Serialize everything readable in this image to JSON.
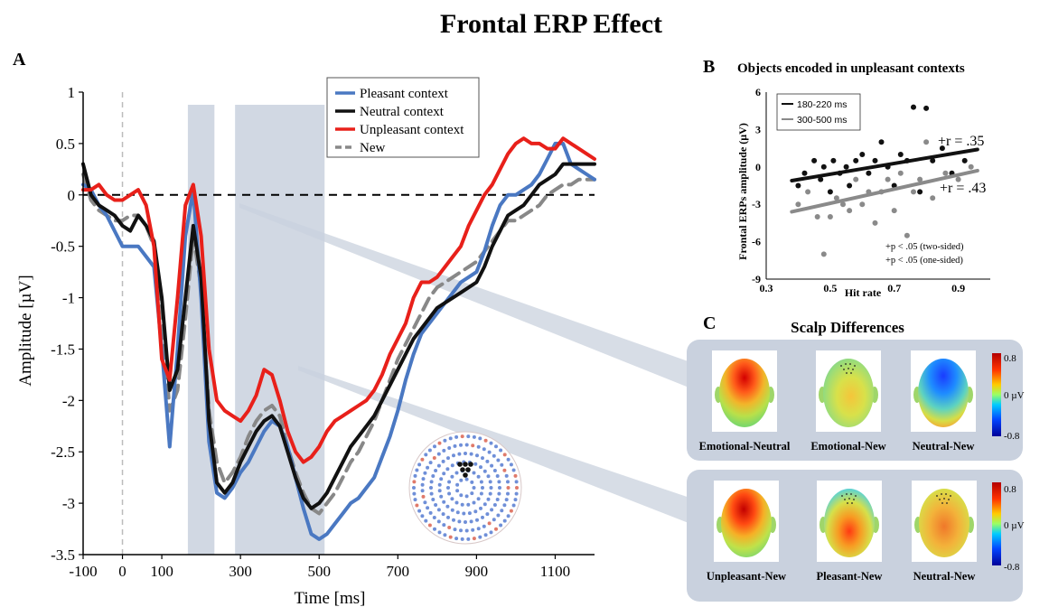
{
  "figure": {
    "title": "Frontal ERP Effect",
    "panel_a_label": "A",
    "panel_b_label": "B",
    "panel_c_label": "C"
  },
  "chart_data": [
    {
      "id": "panel-a",
      "type": "line",
      "xlabel": "Time [ms]",
      "ylabel": "Amplitude [µV]",
      "xlim": [
        -100,
        1200
      ],
      "ylim": [
        -3.5,
        1
      ],
      "xticks": [
        -100,
        0,
        100,
        300,
        500,
        700,
        900,
        1100
      ],
      "yticks": [
        1,
        0.5,
        0,
        -0.5,
        -1,
        -1.5,
        -2,
        -2.5,
        -3,
        -3.5
      ],
      "shaded_windows_ms": [
        [
          180,
          220
        ],
        [
          300,
          500
        ]
      ],
      "zero_line": true,
      "stimulus_onset_ms": 0,
      "legend_position": "top-center",
      "series": [
        {
          "name": "Pleasant context",
          "color": "#4a78c2",
          "dash": false,
          "x": [
            -100,
            -80,
            -60,
            -40,
            -20,
            0,
            20,
            40,
            60,
            80,
            100,
            120,
            140,
            160,
            180,
            200,
            220,
            240,
            260,
            280,
            300,
            320,
            340,
            360,
            380,
            400,
            420,
            440,
            460,
            480,
            500,
            520,
            540,
            560,
            580,
            600,
            620,
            640,
            660,
            680,
            700,
            720,
            740,
            760,
            780,
            800,
            820,
            840,
            860,
            880,
            900,
            920,
            940,
            960,
            980,
            1000,
            1020,
            1040,
            1060,
            1080,
            1100,
            1120,
            1140,
            1160,
            1180,
            1200
          ],
          "y": [
            0.1,
            0.05,
            -0.1,
            -0.2,
            -0.35,
            -0.5,
            -0.5,
            -0.5,
            -0.6,
            -0.7,
            -1.5,
            -2.45,
            -1.5,
            -0.4,
            0.05,
            -1.0,
            -2.4,
            -2.9,
            -2.95,
            -2.85,
            -2.7,
            -2.6,
            -2.45,
            -2.3,
            -2.2,
            -2.25,
            -2.45,
            -2.75,
            -3.05,
            -3.3,
            -3.35,
            -3.3,
            -3.2,
            -3.1,
            -3.0,
            -2.95,
            -2.85,
            -2.75,
            -2.55,
            -2.35,
            -2.1,
            -1.8,
            -1.55,
            -1.35,
            -1.25,
            -1.15,
            -1.05,
            -0.95,
            -0.85,
            -0.8,
            -0.75,
            -0.55,
            -0.3,
            -0.1,
            0.0,
            0.0,
            0.05,
            0.1,
            0.2,
            0.35,
            0.5,
            0.5,
            0.3,
            0.25,
            0.2,
            0.15
          ]
        },
        {
          "name": "Neutral context",
          "color": "#111111",
          "dash": false,
          "x": [
            -100,
            -80,
            -60,
            -40,
            -20,
            0,
            20,
            40,
            60,
            80,
            100,
            120,
            140,
            160,
            180,
            200,
            220,
            240,
            260,
            280,
            300,
            320,
            340,
            360,
            380,
            400,
            420,
            440,
            460,
            480,
            500,
            520,
            540,
            560,
            580,
            600,
            620,
            640,
            660,
            680,
            700,
            720,
            740,
            760,
            780,
            800,
            820,
            840,
            860,
            880,
            900,
            920,
            940,
            960,
            980,
            1000,
            1020,
            1040,
            1060,
            1080,
            1100,
            1120,
            1140,
            1160,
            1180,
            1200
          ],
          "y": [
            0.3,
            0.0,
            -0.1,
            -0.15,
            -0.2,
            -0.3,
            -0.35,
            -0.2,
            -0.3,
            -0.45,
            -1.0,
            -1.9,
            -1.7,
            -1.0,
            -0.3,
            -0.8,
            -2.2,
            -2.8,
            -2.9,
            -2.8,
            -2.6,
            -2.45,
            -2.3,
            -2.2,
            -2.15,
            -2.25,
            -2.5,
            -2.75,
            -2.95,
            -3.05,
            -3.0,
            -2.9,
            -2.75,
            -2.6,
            -2.45,
            -2.35,
            -2.25,
            -2.15,
            -2.0,
            -1.85,
            -1.7,
            -1.55,
            -1.4,
            -1.3,
            -1.2,
            -1.1,
            -1.05,
            -1.0,
            -0.95,
            -0.9,
            -0.85,
            -0.7,
            -0.5,
            -0.35,
            -0.2,
            -0.15,
            -0.1,
            0.0,
            0.1,
            0.15,
            0.2,
            0.3,
            0.3,
            0.3,
            0.3,
            0.3
          ]
        },
        {
          "name": "Unpleasant context",
          "color": "#e8201a",
          "dash": false,
          "x": [
            -100,
            -80,
            -60,
            -40,
            -20,
            0,
            20,
            40,
            60,
            80,
            100,
            120,
            140,
            160,
            180,
            200,
            220,
            240,
            260,
            280,
            300,
            320,
            340,
            360,
            380,
            400,
            420,
            440,
            460,
            480,
            500,
            520,
            540,
            560,
            580,
            600,
            620,
            640,
            660,
            680,
            700,
            720,
            740,
            760,
            780,
            800,
            820,
            840,
            860,
            880,
            900,
            920,
            940,
            960,
            980,
            1000,
            1020,
            1040,
            1060,
            1080,
            1100,
            1120,
            1140,
            1160,
            1180,
            1200
          ],
          "y": [
            0.05,
            0.05,
            0.1,
            0.0,
            -0.05,
            -0.05,
            0.0,
            0.05,
            -0.1,
            -0.5,
            -1.6,
            -1.8,
            -1.0,
            -0.1,
            0.1,
            -0.4,
            -1.5,
            -2.0,
            -2.1,
            -2.15,
            -2.2,
            -2.1,
            -1.95,
            -1.7,
            -1.75,
            -2.0,
            -2.3,
            -2.5,
            -2.6,
            -2.55,
            -2.45,
            -2.3,
            -2.2,
            -2.15,
            -2.1,
            -2.05,
            -2.0,
            -1.9,
            -1.75,
            -1.55,
            -1.4,
            -1.25,
            -1.0,
            -0.85,
            -0.85,
            -0.8,
            -0.7,
            -0.6,
            -0.5,
            -0.3,
            -0.15,
            0.0,
            0.1,
            0.25,
            0.4,
            0.5,
            0.55,
            0.5,
            0.5,
            0.45,
            0.45,
            0.55,
            0.5,
            0.45,
            0.4,
            0.35
          ]
        },
        {
          "name": "New",
          "color": "#888888",
          "dash": true,
          "x": [
            -100,
            -80,
            -60,
            -40,
            -20,
            0,
            20,
            40,
            60,
            80,
            100,
            120,
            140,
            160,
            180,
            200,
            220,
            240,
            260,
            280,
            300,
            320,
            340,
            360,
            380,
            400,
            420,
            440,
            460,
            480,
            500,
            520,
            540,
            560,
            580,
            600,
            620,
            640,
            660,
            680,
            700,
            720,
            740,
            760,
            780,
            800,
            820,
            840,
            860,
            880,
            900,
            920,
            940,
            960,
            980,
            1000,
            1020,
            1040,
            1060,
            1080,
            1100,
            1120,
            1140,
            1160,
            1180,
            1200
          ],
          "y": [
            0.2,
            -0.05,
            -0.15,
            -0.2,
            -0.25,
            -0.25,
            -0.2,
            -0.2,
            -0.3,
            -0.5,
            -1.1,
            -2.1,
            -1.9,
            -1.2,
            -0.4,
            -0.9,
            -2.1,
            -2.6,
            -2.8,
            -2.7,
            -2.55,
            -2.35,
            -2.2,
            -2.1,
            -2.05,
            -2.15,
            -2.45,
            -2.7,
            -2.9,
            -3.05,
            -3.1,
            -3.0,
            -2.9,
            -2.75,
            -2.6,
            -2.5,
            -2.35,
            -2.2,
            -2.0,
            -1.8,
            -1.6,
            -1.45,
            -1.3,
            -1.15,
            -1.0,
            -0.9,
            -0.85,
            -0.8,
            -0.75,
            -0.7,
            -0.65,
            -0.55,
            -0.45,
            -0.35,
            -0.25,
            -0.25,
            -0.2,
            -0.15,
            -0.1,
            0.0,
            0.05,
            0.1,
            0.1,
            0.15,
            0.15,
            0.15
          ]
        }
      ]
    },
    {
      "id": "panel-b",
      "type": "scatter",
      "title": "Objects encoded in unpleasant contexts",
      "xlabel": "Hit rate",
      "ylabel": "Frontal ERPs amplitude (µV)",
      "xlim": [
        0.3,
        1.0
      ],
      "ylim": [
        -9,
        6
      ],
      "xticks": [
        0.3,
        0.5,
        0.7,
        0.9
      ],
      "yticks": [
        6,
        3,
        0,
        -3,
        -6,
        -9
      ],
      "legend_position": "top-left",
      "series": [
        {
          "name": "180-220  ms",
          "color": "#111111",
          "x": [
            0.4,
            0.42,
            0.45,
            0.47,
            0.48,
            0.5,
            0.51,
            0.53,
            0.55,
            0.56,
            0.58,
            0.6,
            0.62,
            0.64,
            0.66,
            0.68,
            0.7,
            0.72,
            0.74,
            0.76,
            0.78,
            0.8,
            0.82,
            0.85,
            0.88,
            0.92
          ],
          "y": [
            -1.5,
            -0.5,
            0.5,
            -1.0,
            0.0,
            -2.0,
            0.5,
            -0.5,
            0.0,
            -1.5,
            0.5,
            1.0,
            -0.5,
            0.5,
            2.0,
            0.0,
            -1.5,
            1.0,
            0.5,
            4.8,
            -2.0,
            4.7,
            0.5,
            1.5,
            -0.5,
            0.5
          ],
          "fit_x": [
            0.38,
            0.96
          ],
          "fit_y": [
            -1.1,
            1.4
          ],
          "annotation": "+r = .35"
        },
        {
          "name": "300-500  ms",
          "color": "#8a8a8a",
          "x": [
            0.4,
            0.43,
            0.46,
            0.48,
            0.5,
            0.52,
            0.54,
            0.56,
            0.58,
            0.6,
            0.62,
            0.64,
            0.66,
            0.68,
            0.7,
            0.72,
            0.74,
            0.76,
            0.78,
            0.8,
            0.82,
            0.86,
            0.9,
            0.94
          ],
          "y": [
            -3.0,
            -2.0,
            -4.0,
            -7.0,
            -4.0,
            -2.5,
            -3.0,
            -3.5,
            -1.0,
            -3.0,
            -2.0,
            -4.5,
            -2.0,
            -1.0,
            -3.5,
            -0.5,
            -5.5,
            -2.0,
            -1.0,
            2.0,
            -2.5,
            -0.5,
            -1.0,
            0.0
          ],
          "fit_x": [
            0.38,
            0.96
          ],
          "fit_y": [
            -3.6,
            -0.3
          ],
          "annotation": "+r = .43"
        }
      ],
      "notes": [
        "+p < .05 (two-sided)",
        "+p < .05 (one-sided)"
      ]
    }
  ],
  "scalp": {
    "title": "Scalp Differences",
    "colorbar_max": "0.8",
    "colorbar_mid": "0 µV",
    "colorbar_min": "-0.8",
    "row1": [
      "Emotional-Neutral",
      "Emotional-New",
      "Neutral-New"
    ],
    "row2": [
      "Unpleasant-New",
      "Pleasant-New",
      "Neutral-New"
    ]
  }
}
